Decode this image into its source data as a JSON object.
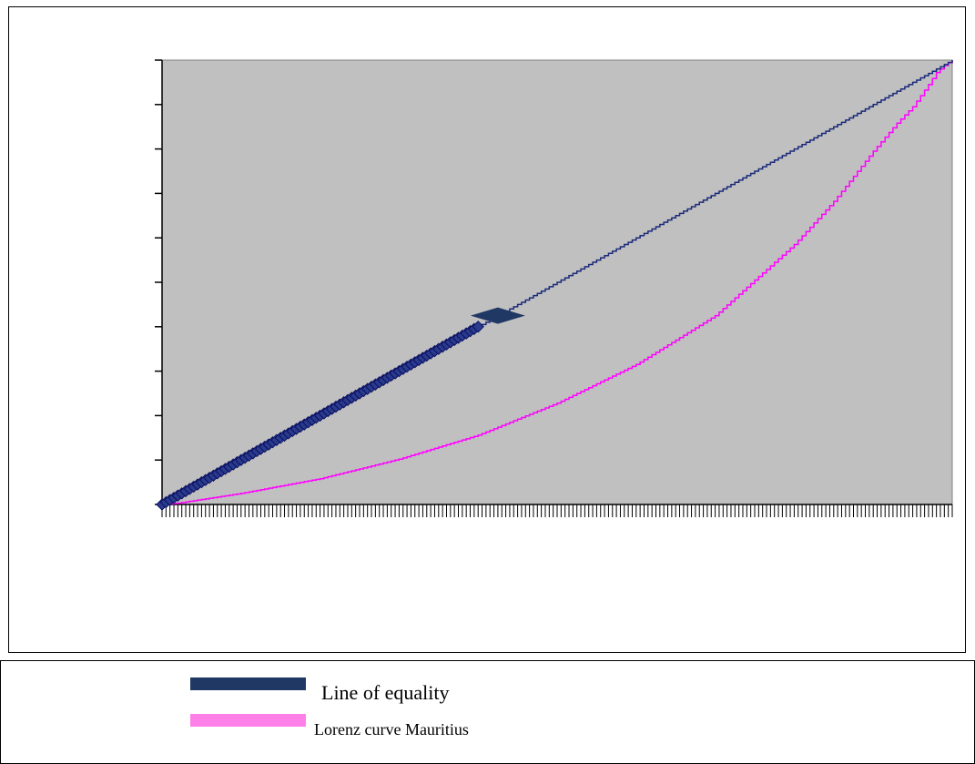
{
  "chart_data": {
    "type": "line",
    "title": "",
    "xlabel": "",
    "ylabel": "",
    "x_range": [
      0,
      100
    ],
    "ylim": [
      0,
      100
    ],
    "y_tick_count": 10,
    "x_tick_count": 200,
    "tick_labels_shown": false,
    "grid": false,
    "plot_background": "#c0c0c0",
    "legend_position": "bottom",
    "series": [
      {
        "name": "Line of equality",
        "color": "#1b2a7a",
        "legend_color": "#1f3864",
        "x": [
          0,
          100
        ],
        "y": [
          0,
          100
        ],
        "marker": "diamond",
        "marker_color": "#1f3864",
        "markers_visible_until_x": 40
      },
      {
        "name": "Lorenz curve Mauritius",
        "color": "#ff00ff",
        "legend_color": "#ff7fe8",
        "x": [
          0,
          2,
          10,
          20,
          30,
          40,
          50,
          60,
          70,
          80,
          85,
          90,
          93,
          95,
          97,
          98,
          99,
          100
        ],
        "y": [
          0,
          0.3,
          2.5,
          5.8,
          10.2,
          15.6,
          22.8,
          31.5,
          42.5,
          58.5,
          68.2,
          79.5,
          85.8,
          89.5,
          94.5,
          97.2,
          98.8,
          100
        ]
      }
    ]
  },
  "legend": {
    "items": [
      {
        "label": "Line of equality"
      },
      {
        "label": "Lorenz curve Mauritius"
      }
    ]
  }
}
